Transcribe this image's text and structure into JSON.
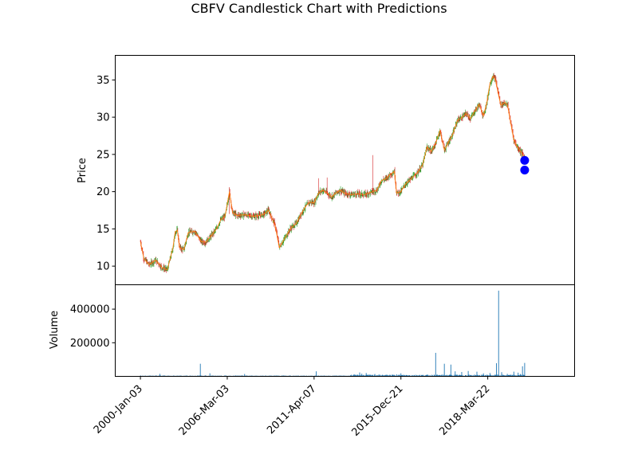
{
  "chart_data": {
    "type": "candlestick",
    "title": "CBFV Candlestick Chart with Predictions",
    "price_panel": {
      "ylabel": "Price",
      "ylim": [
        7.5,
        38.3
      ],
      "yticks": [
        10,
        15,
        20,
        25,
        30,
        35
      ],
      "xlim": [
        -58,
        1000
      ],
      "candle_colors": {
        "up": "#2ca02c",
        "down": "#d62728"
      },
      "close_line_color": "#ff7f0e",
      "close_series": [
        [
          0,
          13.3
        ],
        [
          8,
          11.0
        ],
        [
          20,
          10.2
        ],
        [
          35,
          10.8
        ],
        [
          50,
          9.8
        ],
        [
          62,
          9.5
        ],
        [
          75,
          12.5
        ],
        [
          80,
          14.6
        ],
        [
          85,
          14.8
        ],
        [
          90,
          12.5
        ],
        [
          100,
          12.2
        ],
        [
          110,
          14.5
        ],
        [
          125,
          14.7
        ],
        [
          140,
          13.3
        ],
        [
          150,
          13.2
        ],
        [
          162,
          14.0
        ],
        [
          175,
          15.0
        ],
        [
          185,
          16.2
        ],
        [
          195,
          16.7
        ],
        [
          205,
          20.0
        ],
        [
          212,
          17.2
        ],
        [
          222,
          16.8
        ],
        [
          240,
          16.9
        ],
        [
          260,
          16.7
        ],
        [
          275,
          16.8
        ],
        [
          285,
          17.0
        ],
        [
          295,
          17.5
        ],
        [
          310,
          15.5
        ],
        [
          320,
          12.5
        ],
        [
          330,
          13.5
        ],
        [
          345,
          15.0
        ],
        [
          360,
          15.8
        ],
        [
          370,
          17.0
        ],
        [
          380,
          18.0
        ],
        [
          390,
          18.6
        ],
        [
          400,
          18.5
        ],
        [
          410,
          19.8
        ],
        [
          420,
          20.2
        ],
        [
          430,
          19.8
        ],
        [
          440,
          19.3
        ],
        [
          450,
          19.8
        ],
        [
          460,
          20.2
        ],
        [
          470,
          19.8
        ],
        [
          485,
          19.6
        ],
        [
          500,
          19.7
        ],
        [
          515,
          19.6
        ],
        [
          530,
          19.9
        ],
        [
          545,
          20.2
        ],
        [
          555,
          21.5
        ],
        [
          565,
          21.7
        ],
        [
          575,
          22.3
        ],
        [
          585,
          22.7
        ],
        [
          590,
          19.8
        ],
        [
          600,
          20.0
        ],
        [
          610,
          21.0
        ],
        [
          625,
          21.8
        ],
        [
          640,
          22.7
        ],
        [
          650,
          23.6
        ],
        [
          660,
          26.0
        ],
        [
          670,
          25.4
        ],
        [
          680,
          26.5
        ],
        [
          690,
          28.2
        ],
        [
          700,
          25.6
        ],
        [
          710,
          26.7
        ],
        [
          720,
          27.8
        ],
        [
          730,
          29.6
        ],
        [
          740,
          29.9
        ],
        [
          750,
          30.5
        ],
        [
          760,
          29.8
        ],
        [
          770,
          30.8
        ],
        [
          780,
          31.7
        ],
        [
          790,
          30.2
        ],
        [
          798,
          32.0
        ],
        [
          805,
          34.5
        ],
        [
          812,
          35.5
        ],
        [
          818,
          35.0
        ],
        [
          825,
          33.0
        ],
        [
          830,
          31.6
        ],
        [
          840,
          32.0
        ],
        [
          846,
          31.5
        ],
        [
          852,
          29.5
        ],
        [
          860,
          27.0
        ],
        [
          866,
          26.2
        ],
        [
          872,
          25.7
        ],
        [
          878,
          25.2
        ],
        [
          885,
          24.5
        ]
      ],
      "prediction_color": "#0000ff",
      "predictions": [
        {
          "x": 885,
          "y": 24.2
        },
        {
          "x": 885,
          "y": 22.9
        }
      ]
    },
    "volume_panel": {
      "ylabel": "Volume",
      "ylim": [
        0,
        545000
      ],
      "yticks": [
        200000,
        400000
      ],
      "bar_color": "#1f77b4",
      "spikes": [
        [
          0,
          4000
        ],
        [
          45,
          15000
        ],
        [
          55,
          6000
        ],
        [
          138,
          75000
        ],
        [
          150,
          6000
        ],
        [
          160,
          18000
        ],
        [
          240,
          14000
        ],
        [
          405,
          30000
        ],
        [
          505,
          23000
        ],
        [
          510,
          16000
        ],
        [
          520,
          20000
        ],
        [
          540,
          14000
        ],
        [
          590,
          12000
        ],
        [
          600,
          18000
        ],
        [
          680,
          140000
        ],
        [
          700,
          75000
        ],
        [
          715,
          70000
        ],
        [
          725,
          30000
        ],
        [
          740,
          26000
        ],
        [
          755,
          32000
        ],
        [
          775,
          28000
        ],
        [
          790,
          18000
        ],
        [
          805,
          20000
        ],
        [
          820,
          78000
        ],
        [
          825,
          510000
        ],
        [
          832,
          25000
        ],
        [
          845,
          15000
        ],
        [
          860,
          28000
        ],
        [
          870,
          22000
        ],
        [
          875,
          14000
        ],
        [
          880,
          60000
        ],
        [
          885,
          80000
        ]
      ]
    },
    "x_tick_positions": [
      0,
      200,
      400,
      600,
      800
    ],
    "x_tick_labels": [
      "2000-Jan-03",
      "2006-Mar-03",
      "2011-Apr-07",
      "2015-Dec-21",
      "2018-Mar-22"
    ]
  }
}
